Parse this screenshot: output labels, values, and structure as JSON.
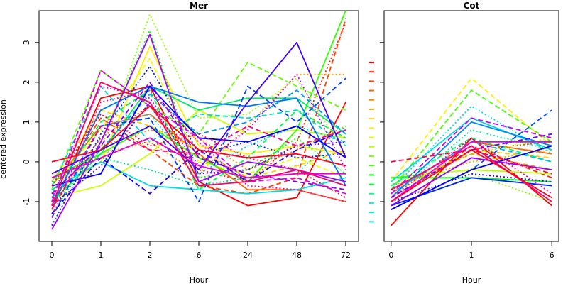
{
  "figure": {
    "ylabel": "centered expression"
  },
  "chart_data": [
    {
      "type": "line",
      "title": "Mer",
      "xlabel": "Hour",
      "ylabel": "centered expression",
      "categories": [
        "0",
        "1",
        "2",
        "6",
        "24",
        "48",
        "72"
      ],
      "ylim": [
        -2.0,
        3.8
      ],
      "yticks": [
        -1,
        0,
        1,
        2,
        3
      ],
      "grid": false,
      "series": [
        {
          "color": "#ff0000",
          "dash": "solid",
          "values": [
            -1.2,
            1.6,
            1.9,
            -0.5,
            -1.1,
            -0.9,
            1.5
          ]
        },
        {
          "color": "#ff2200",
          "dash": "dotted",
          "values": [
            -1.0,
            0.6,
            1.4,
            -0.2,
            -0.5,
            0.5,
            3.5
          ]
        },
        {
          "color": "#ff4400",
          "dash": "dashed",
          "values": [
            -0.8,
            1.1,
            0.3,
            -0.6,
            -0.8,
            -0.4,
            3.6
          ]
        },
        {
          "color": "#ff6600",
          "dash": "solid",
          "values": [
            -0.6,
            0.9,
            1.2,
            0.2,
            -0.7,
            -0.7,
            -1.0
          ]
        },
        {
          "color": "#ff8800",
          "dash": "dotted",
          "values": [
            -0.9,
            0.4,
            0.8,
            0.6,
            -0.2,
            0.3,
            0.9
          ]
        },
        {
          "color": "#ffaa00",
          "dash": "dotted",
          "values": [
            -0.7,
            0.2,
            0.5,
            -0.3,
            0.9,
            2.2,
            2.2
          ]
        },
        {
          "color": "#ffcc00",
          "dash": "dashed",
          "values": [
            -0.5,
            1.3,
            0.9,
            0.3,
            -0.4,
            -0.1,
            0.3
          ]
        },
        {
          "color": "#ffee00",
          "dash": "solid",
          "values": [
            -0.8,
            0.0,
            2.9,
            0.4,
            0.2,
            0.4,
            0.2
          ]
        },
        {
          "color": "#eeff00",
          "dash": "dashed",
          "values": [
            -0.6,
            0.8,
            2.6,
            0.0,
            -0.3,
            0.1,
            -0.4
          ]
        },
        {
          "color": "#ccff00",
          "dash": "solid",
          "values": [
            -0.9,
            -0.6,
            0.2,
            1.3,
            0.7,
            0.8,
            0.6
          ]
        },
        {
          "color": "#99ff00",
          "dash": "dotted",
          "values": [
            -1.1,
            0.3,
            3.7,
            1.1,
            1.2,
            2.1,
            0.2
          ]
        },
        {
          "color": "#66ff00",
          "dash": "dashed",
          "values": [
            -0.7,
            2.3,
            1.4,
            0.7,
            2.5,
            1.9,
            1.3
          ]
        },
        {
          "color": "#33ff00",
          "dash": "solid",
          "values": [
            -0.4,
            0.2,
            0.9,
            0.1,
            -0.5,
            0.8,
            3.8
          ]
        },
        {
          "color": "#00ff00",
          "dash": "dotted",
          "values": [
            -1.3,
            0.5,
            3.3,
            -0.4,
            -0.2,
            0.6,
            -0.3
          ]
        },
        {
          "color": "#00ff44",
          "dash": "dashed",
          "values": [
            -0.8,
            1.0,
            1.8,
            -0.7,
            0.1,
            1.3,
            0.6
          ]
        },
        {
          "color": "#00ee66",
          "dash": "solid",
          "values": [
            -1.0,
            0.2,
            1.9,
            1.3,
            1.6,
            1.6,
            0.7
          ]
        },
        {
          "color": "#00dd99",
          "dash": "dotted",
          "values": [
            -0.5,
            0.1,
            -0.2,
            -0.6,
            -0.4,
            -0.3,
            0.9
          ]
        },
        {
          "color": "#00ddcc",
          "dash": "dashed",
          "values": [
            -0.6,
            1.9,
            0.5,
            1.2,
            1.1,
            1.3,
            0.4
          ]
        },
        {
          "color": "#00dddd",
          "dash": "solid",
          "values": [
            -0.7,
            0.0,
            -0.6,
            -0.7,
            -0.8,
            -0.7,
            -0.4
          ]
        },
        {
          "color": "#00ccff",
          "dash": "dotted",
          "values": [
            -1.2,
            0.9,
            1.2,
            -0.3,
            0.4,
            0.9,
            0.5
          ]
        },
        {
          "color": "#0099ff",
          "dash": "dashed",
          "values": [
            -0.9,
            0.3,
            1.7,
            0.7,
            1.0,
            1.8,
            0.7
          ]
        },
        {
          "color": "#0077ff",
          "dash": "solid",
          "values": [
            -1.1,
            1.3,
            1.9,
            1.5,
            1.4,
            1.6,
            -0.6
          ]
        },
        {
          "color": "#0044ff",
          "dash": "dashed",
          "values": [
            -1.4,
            0.9,
            1.1,
            -1.0,
            1.9,
            1.0,
            2.1
          ]
        },
        {
          "color": "#0022ff",
          "dash": "dotted",
          "values": [
            -1.6,
            0.7,
            2.4,
            0.2,
            0.5,
            0.1,
            0.2
          ]
        },
        {
          "color": "#0000ff",
          "dash": "solid",
          "values": [
            -0.6,
            -0.3,
            1.9,
            0.6,
            0.5,
            0.9,
            0.1
          ]
        },
        {
          "color": "#2200ff",
          "dash": "dashed",
          "values": [
            -1.3,
            0.1,
            -0.8,
            0.3,
            -0.5,
            0.3,
            0.8
          ]
        },
        {
          "color": "#4400ff",
          "dash": "solid",
          "values": [
            -0.3,
            0.3,
            0.9,
            -0.2,
            1.5,
            3.0,
            0.1
          ]
        },
        {
          "color": "#6600ff",
          "dash": "dotted",
          "values": [
            -1.1,
            -0.1,
            1.5,
            -0.3,
            -0.2,
            0.4,
            0.5
          ]
        },
        {
          "color": "#8800ff",
          "dash": "dashed",
          "values": [
            -0.8,
            0.4,
            2.0,
            0.1,
            -0.3,
            -0.5,
            -0.7
          ]
        },
        {
          "color": "#aa00ff",
          "dash": "solid",
          "values": [
            -1.7,
            0.5,
            3.2,
            -0.5,
            0.0,
            -0.2,
            -0.5
          ]
        },
        {
          "color": "#cc00ff",
          "dash": "dotted",
          "values": [
            -0.9,
            1.9,
            1.6,
            -0.1,
            0.8,
            2.2,
            -0.2
          ]
        },
        {
          "color": "#dd00ee",
          "dash": "dashed",
          "values": [
            -1.0,
            2.3,
            1.4,
            0.6,
            -0.5,
            -0.4,
            -0.8
          ]
        },
        {
          "color": "#ee00cc",
          "dash": "solid",
          "values": [
            -0.4,
            0.1,
            0.6,
            -0.1,
            -0.4,
            -0.3,
            -0.3
          ]
        },
        {
          "color": "#ff00aa",
          "dash": "dotted",
          "values": [
            -1.4,
            1.5,
            1.8,
            0.5,
            -0.6,
            -0.7,
            -1.0
          ]
        },
        {
          "color": "#ff0088",
          "dash": "dashed",
          "values": [
            -1.2,
            0.9,
            0.3,
            0.2,
            0.9,
            0.4,
            0.8
          ]
        },
        {
          "color": "#ff0066",
          "dash": "solid",
          "values": [
            -1.1,
            2.0,
            1.5,
            -0.6,
            -0.5,
            -0.2,
            -0.6
          ]
        },
        {
          "color": "#ff0044",
          "dash": "dotted",
          "values": [
            -0.6,
            1.2,
            0.4,
            0.7,
            0.1,
            -0.2,
            -0.9
          ]
        },
        {
          "color": "#ff0022",
          "dash": "solid",
          "values": [
            0.0,
            0.3,
            1.4,
            0.3,
            0.1,
            0.2,
            -0.1
          ]
        }
      ]
    },
    {
      "type": "line",
      "title": "Cot",
      "xlabel": "Hour",
      "ylabel": "",
      "categories": [
        "0",
        "1",
        "6"
      ],
      "ylim": [
        -2.0,
        3.8
      ],
      "yticks": [
        -1,
        0,
        1,
        2,
        3
      ],
      "grid": false,
      "series": [
        {
          "color": "#ff0000",
          "dash": "solid",
          "values": [
            -1.6,
            0.6,
            -1.1
          ]
        },
        {
          "color": "#ff2200",
          "dash": "dashed",
          "values": [
            -1.0,
            0.4,
            -0.4
          ]
        },
        {
          "color": "#ff4400",
          "dash": "dotted",
          "values": [
            -0.9,
            0.3,
            0.5
          ]
        },
        {
          "color": "#ff6600",
          "dash": "solid",
          "values": [
            -0.8,
            0.5,
            0.2
          ]
        },
        {
          "color": "#ff8800",
          "dash": "dashed",
          "values": [
            -0.7,
            0.2,
            -0.2
          ]
        },
        {
          "color": "#ffaa00",
          "dash": "dotted",
          "values": [
            -0.6,
            0.0,
            0.3
          ]
        },
        {
          "color": "#ffcc00",
          "dash": "dashed",
          "values": [
            -0.8,
            0.3,
            0.1
          ]
        },
        {
          "color": "#ffee00",
          "dash": "dashed",
          "values": [
            -0.5,
            2.1,
            0.4
          ]
        },
        {
          "color": "#ddff00",
          "dash": "dotted",
          "values": [
            -0.6,
            0.2,
            0.6
          ]
        },
        {
          "color": "#bbff00",
          "dash": "solid",
          "values": [
            -0.4,
            -0.2,
            -0.3
          ]
        },
        {
          "color": "#88ff00",
          "dash": "dotted",
          "values": [
            -1.0,
            -0.3,
            -1.0
          ]
        },
        {
          "color": "#44ff00",
          "dash": "dashed",
          "values": [
            -0.7,
            1.8,
            0.5
          ]
        },
        {
          "color": "#00ff00",
          "dash": "solid",
          "values": [
            -0.4,
            -0.4,
            -0.5
          ]
        },
        {
          "color": "#00ff66",
          "dash": "dashed",
          "values": [
            -0.6,
            0.6,
            0.0
          ]
        },
        {
          "color": "#00eeaa",
          "dash": "dotted",
          "values": [
            -0.9,
            0.8,
            0.3
          ]
        },
        {
          "color": "#00dddd",
          "dash": "solid",
          "values": [
            -0.5,
            1.1,
            0.3
          ]
        },
        {
          "color": "#00ddff",
          "dash": "dotted",
          "values": [
            -0.7,
            1.4,
            0.2
          ]
        },
        {
          "color": "#00bbff",
          "dash": "dashed",
          "values": [
            -0.8,
            0.5,
            0.0
          ]
        },
        {
          "color": "#0088ff",
          "dash": "solid",
          "values": [
            -0.9,
            1.0,
            0.4
          ]
        },
        {
          "color": "#0055ff",
          "dash": "dashed",
          "values": [
            -1.2,
            -0.2,
            1.3
          ]
        },
        {
          "color": "#0022ff",
          "dash": "solid",
          "values": [
            -1.1,
            -0.4,
            -0.6
          ]
        },
        {
          "color": "#0000ee",
          "dash": "solid",
          "values": [
            -1.2,
            -0.2,
            0.4
          ]
        },
        {
          "color": "#3300ff",
          "dash": "dotted",
          "values": [
            -1.0,
            -0.3,
            -0.5
          ]
        },
        {
          "color": "#6600ff",
          "dash": "dashed",
          "values": [
            -0.9,
            0.3,
            0.7
          ]
        },
        {
          "color": "#9900ff",
          "dash": "solid",
          "values": [
            -1.1,
            0.1,
            -0.2
          ]
        },
        {
          "color": "#cc00ff",
          "dash": "dashed",
          "values": [
            -0.8,
            1.1,
            0.6
          ]
        },
        {
          "color": "#ee00dd",
          "dash": "solid",
          "values": [
            -1.0,
            0.5,
            0.5
          ]
        },
        {
          "color": "#ff00aa",
          "dash": "dotted",
          "values": [
            -0.9,
            0.6,
            -0.8
          ]
        },
        {
          "color": "#ff0077",
          "dash": "solid",
          "values": [
            -0.7,
            0.4,
            -1.0
          ]
        },
        {
          "color": "#ff0044",
          "dash": "dashed",
          "values": [
            0.0,
            0.3,
            -0.3
          ]
        },
        {
          "color": "#ff0022",
          "dash": "solid",
          "values": [
            -1.0,
            0.3,
            -0.9
          ]
        }
      ]
    }
  ],
  "legend": {
    "placement": "between-panels",
    "swatches": [
      "#ff0000",
      "#ff2200",
      "#ff4400",
      "#ff6600",
      "#ff8800",
      "#ffaa00",
      "#ffcc00",
      "#ffee00",
      "#ddff00",
      "#bbff00",
      "#88ff00",
      "#44ff00",
      "#00ff00",
      "#00ff44",
      "#00ff88",
      "#00ffbb",
      "#00eedd",
      "#00ddee"
    ]
  }
}
